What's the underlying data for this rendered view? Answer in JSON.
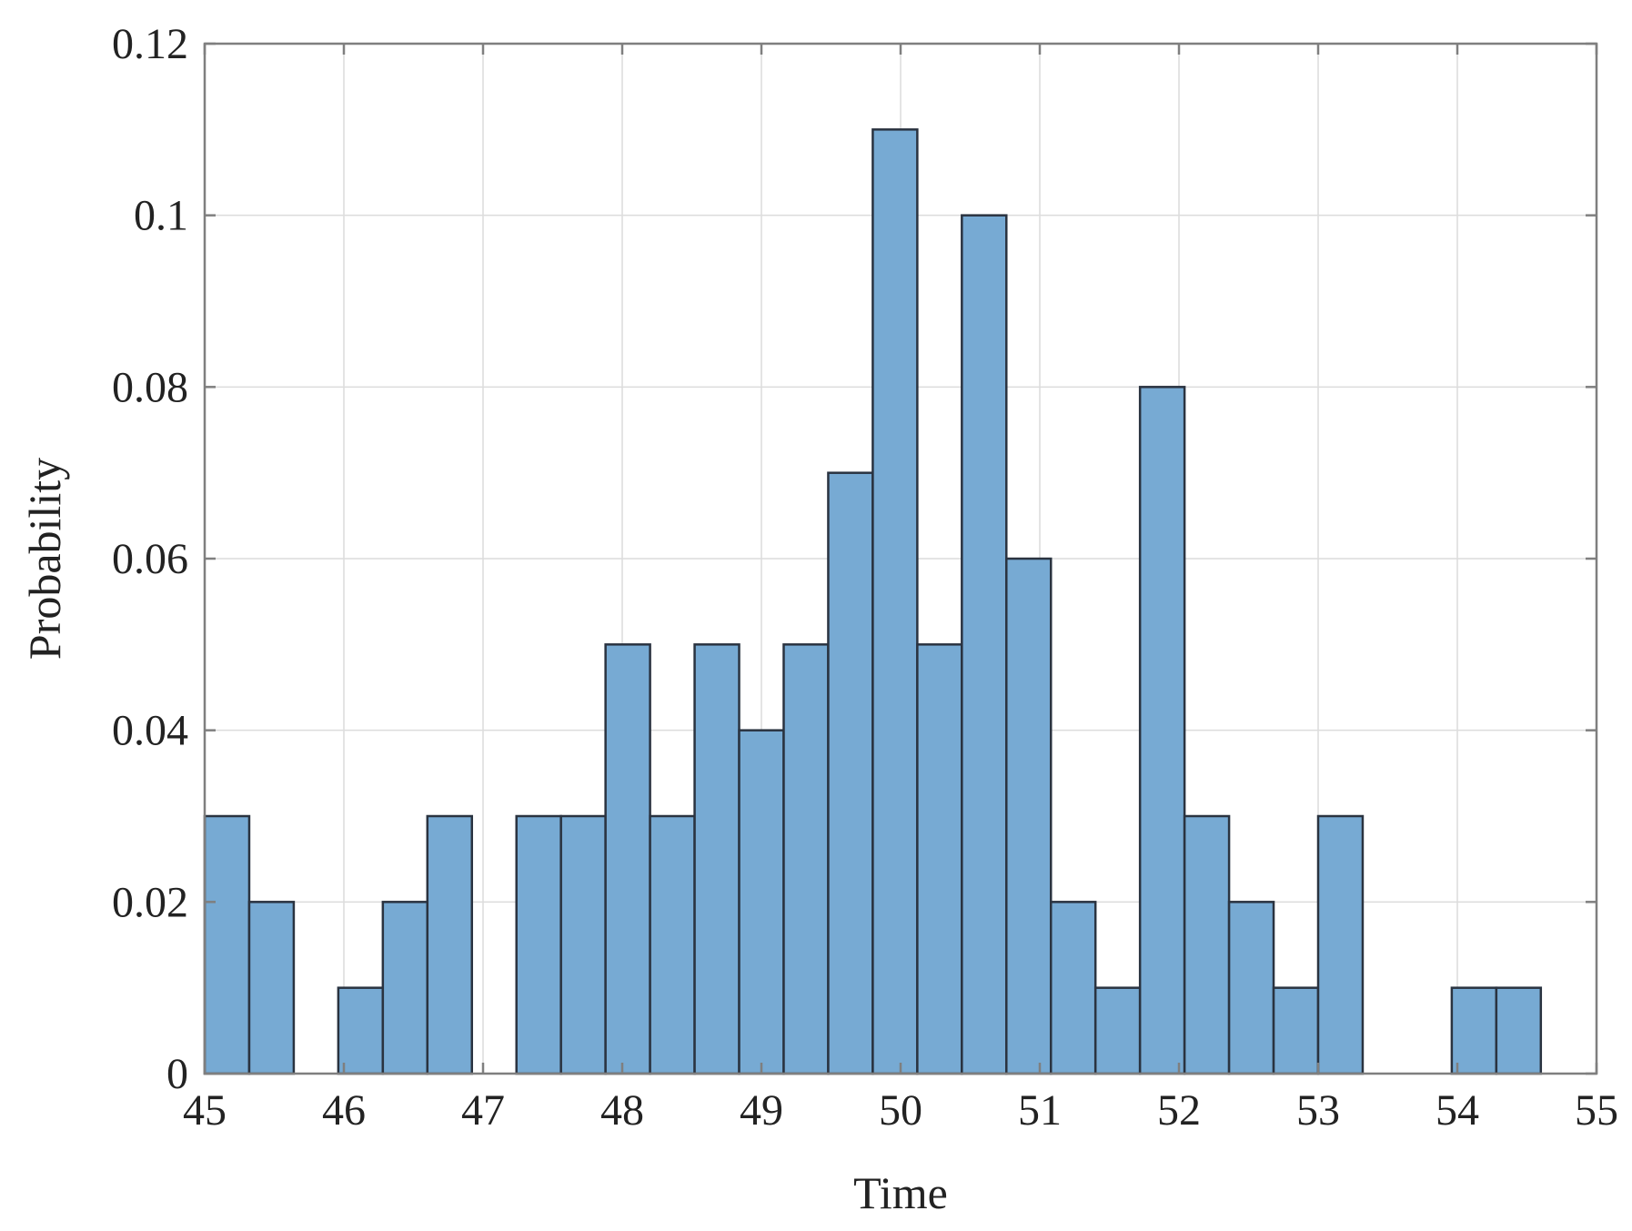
{
  "chart_data": {
    "type": "bar",
    "subtype": "histogram",
    "title": "",
    "xlabel": "Time",
    "ylabel": "Probability",
    "xlim": [
      45,
      55
    ],
    "ylim": [
      0,
      0.12
    ],
    "xticks": [
      "45",
      "46",
      "47",
      "48",
      "49",
      "50",
      "51",
      "52",
      "53",
      "54",
      "55"
    ],
    "yticks": [
      "0",
      "0.02",
      "0.04",
      "0.06",
      "0.08",
      "0.1",
      "0.12"
    ],
    "grid": true,
    "legend": "none",
    "bin_start": 45.0,
    "bin_width": 0.32,
    "values": [
      0.03,
      0.02,
      0,
      0.01,
      0.02,
      0.03,
      0,
      0.03,
      0.03,
      0.05,
      0.03,
      0.05,
      0.04,
      0.05,
      0.07,
      0.11,
      0.05,
      0.1,
      0.06,
      0.02,
      0.01,
      0.08,
      0.03,
      0.02,
      0.01,
      0.03,
      0,
      0,
      0.01,
      0.01
    ],
    "colors": {
      "bar_fill": "#77aad3",
      "bar_edge": "#2a3340",
      "axes": "#7f7f7f",
      "grid": "#dcdcdc"
    }
  }
}
